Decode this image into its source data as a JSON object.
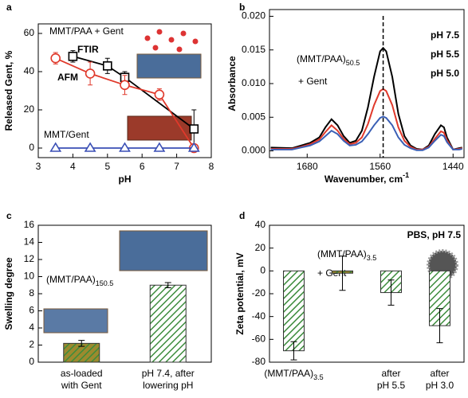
{
  "chart_data": [
    {
      "type": "line",
      "panel_label": "a",
      "x_label": "pH",
      "y_label": "Released Gent, %",
      "xlim": [
        3,
        8
      ],
      "xticks": [
        3,
        4,
        5,
        6,
        7,
        8
      ],
      "ylim": [
        -5,
        65
      ],
      "yticks": [
        0,
        20,
        40,
        60
      ],
      "annotations": [
        {
          "text": "MMT/PAA + Gent"
        }
      ],
      "series": [
        {
          "name": "FTIR",
          "color": "#000000",
          "marker": "square",
          "x": [
            4,
            5,
            5.5,
            7.5
          ],
          "values": [
            48,
            43,
            37,
            10
          ],
          "errors": [
            3,
            4,
            3,
            10
          ]
        },
        {
          "name": "AFM",
          "color": "#e0392b",
          "marker": "circle",
          "x": [
            3.5,
            4.5,
            5.5,
            6.5,
            7.5
          ],
          "values": [
            47,
            39,
            33,
            28,
            0
          ],
          "errors": [
            3,
            6,
            5,
            3,
            0
          ]
        },
        {
          "name": "MMT/Gent",
          "color": "#3a4fb5",
          "marker": "triangle",
          "x": [
            3.5,
            4.5,
            5.5,
            6.5,
            7.5
          ],
          "values": [
            0,
            0,
            0,
            0,
            0
          ]
        }
      ]
    },
    {
      "type": "spectrum",
      "panel_label": "b",
      "x_label": "Wavenumber, cm",
      "x_label_sup": "-1",
      "y_label": "Absorbance",
      "xlim": [
        1742,
        1422
      ],
      "xticks": [
        1680,
        1560,
        1440
      ],
      "ylim": [
        -0.001,
        0.021
      ],
      "yticks": [
        {
          "value": 0,
          "label": "0.000"
        },
        {
          "value": 0.005,
          "label": "0.005"
        },
        {
          "value": 0.01,
          "label": "0.010"
        },
        {
          "value": 0.015,
          "label": "0.015"
        },
        {
          "value": 0.02,
          "label": "0.020"
        }
      ],
      "dashed_line_x": 1555,
      "annotations": [
        {
          "text": "(MMT/PAA)",
          "sub": "50.5"
        },
        {
          "text": "+ Gent"
        }
      ],
      "x": [
        1740,
        1705,
        1690,
        1675,
        1660,
        1650,
        1640,
        1630,
        1620,
        1610,
        1600,
        1590,
        1580,
        1570,
        1560,
        1555,
        1550,
        1540,
        1530,
        1520,
        1510,
        1500,
        1490,
        1480,
        1470,
        1460,
        1455,
        1450,
        1440,
        1430,
        1425
      ],
      "series": [
        {
          "name": "pH 7.5",
          "color": "#000000",
          "values": [
            0.0005,
            0.0004,
            0.0008,
            0.0012,
            0.002,
            0.0035,
            0.0047,
            0.0038,
            0.0022,
            0.0012,
            0.0015,
            0.003,
            0.0065,
            0.011,
            0.0148,
            0.0153,
            0.0148,
            0.011,
            0.0055,
            0.0022,
            0.0008,
            0.0003,
            0.0002,
            0.0008,
            0.0025,
            0.0038,
            0.0035,
            0.002,
            0.0002,
            0.0004,
            0.0005
          ]
        },
        {
          "name": "pH 5.5",
          "color": "#e0392b",
          "values": [
            0.0003,
            0.0003,
            0.0006,
            0.001,
            0.0017,
            0.0028,
            0.0038,
            0.003,
            0.0018,
            0.001,
            0.0012,
            0.002,
            0.004,
            0.0068,
            0.0089,
            0.0092,
            0.0089,
            0.0068,
            0.0035,
            0.0015,
            0.0006,
            0.0002,
            0.0002,
            0.0006,
            0.0018,
            0.0029,
            0.0027,
            0.0016,
            0.0002,
            0.0003,
            0.0004
          ]
        },
        {
          "name": "pH 5.0",
          "color": "#3a5fb5",
          "values": [
            0.0002,
            0.0002,
            0.0005,
            0.0008,
            0.0014,
            0.0022,
            0.003,
            0.0025,
            0.0015,
            0.0008,
            0.0009,
            0.0014,
            0.0025,
            0.0038,
            0.0049,
            0.0051,
            0.0049,
            0.0038,
            0.002,
            0.0009,
            0.0004,
            0.0001,
            0.0001,
            0.0005,
            0.0015,
            0.0024,
            0.0022,
            0.0013,
            0.0002,
            0.0002,
            0.0003
          ]
        }
      ]
    },
    {
      "type": "bar",
      "panel_label": "c",
      "y_label": "Swelling degree",
      "ylim": [
        0,
        16
      ],
      "yticks": [
        0,
        2,
        4,
        6,
        8,
        10,
        12,
        14,
        16
      ],
      "annotations": [
        {
          "text": "(MMT/PAA)",
          "sub": "150.5"
        }
      ],
      "categories": [
        [
          "as-loaded",
          "with Gent"
        ],
        [
          "pH 7.4, after",
          "lowering pH"
        ]
      ],
      "values": [
        2.2,
        9.0
      ],
      "errors": [
        0.35,
        0.3
      ],
      "colors": [
        "#9c8a2e",
        "#ffffff"
      ],
      "hatch_color": "#3c8c3c"
    },
    {
      "type": "bar",
      "panel_label": "d",
      "y_label": "Zeta potential, mV",
      "ylim": [
        -80,
        40
      ],
      "yticks": [
        -80,
        -60,
        -40,
        -20,
        0,
        20,
        40
      ],
      "annotations": [
        {
          "text": "PBS, pH 7.5"
        },
        {
          "text": "(MMT/PAA)",
          "sub": "3.5"
        },
        {
          "text": "+ Gent"
        }
      ],
      "categories": [
        {
          "text": "(MMT/PAA)",
          "sub": "3.5"
        },
        null,
        [
          "after",
          "pH 5.5"
        ],
        [
          "after",
          "pH 3.0"
        ]
      ],
      "values": [
        -70,
        -2,
        -19,
        -48
      ],
      "errors": [
        8,
        15,
        11,
        15
      ],
      "colors": [
        "#ffffff",
        "#9c8a2e",
        "#ffffff",
        "#ffffff"
      ],
      "hatch_color": "#3c8c3c"
    }
  ]
}
